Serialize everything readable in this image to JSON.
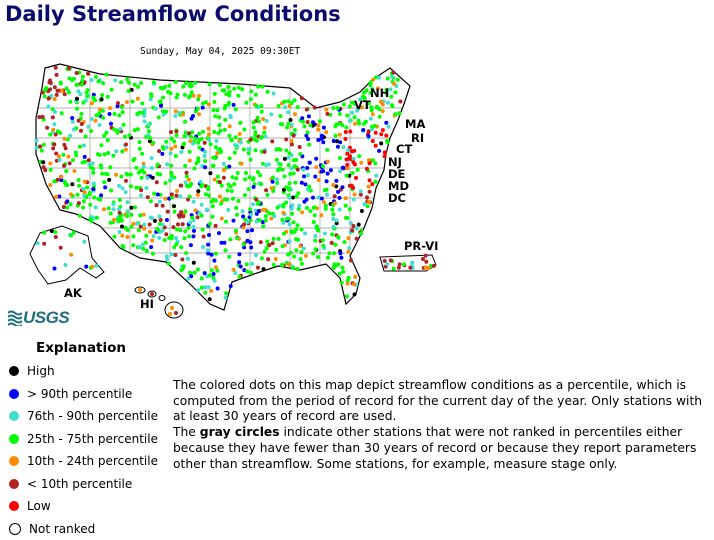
{
  "title": "Daily Streamflow Conditions",
  "datestamp": "Sunday, May 04, 2025 09:30ET",
  "map": {
    "state_labels": [
      "NH",
      "VT",
      "MA",
      "RI",
      "CT",
      "NJ",
      "DE",
      "MD",
      "DC",
      "PR-VI",
      "AK",
      "HI"
    ],
    "logo_text": "USGS"
  },
  "explanation": {
    "heading": "Explanation",
    "items": [
      {
        "label": "High",
        "color": "#000000"
      },
      {
        "label": "> 90th percentile",
        "color": "#0000ff"
      },
      {
        "label": "76th - 90th percentile",
        "color": "#40e0d0"
      },
      {
        "label": "25th - 75th percentile",
        "color": "#00ff00"
      },
      {
        "label": "10th - 24th percentile",
        "color": "#ff8c00"
      },
      {
        "label": "< 10th percentile",
        "color": "#b22222"
      },
      {
        "label": "Low",
        "color": "#ff0000"
      },
      {
        "label": "Not ranked",
        "color": "#ffffff"
      }
    ]
  },
  "description": {
    "para1": "The colored dots on this map depict streamflow conditions as a percentile, which is computed from the period of record for the current day of the year. Only stations with at least 30 years of record are used.",
    "para2_pre": "The ",
    "para2_bold": "gray circles",
    "para2_post": " indicate other stations that were not ranked in percentiles either because they have fewer than 30 years of record or because they report parameters other than streamflow. Some stations, for example, measure stage only."
  }
}
